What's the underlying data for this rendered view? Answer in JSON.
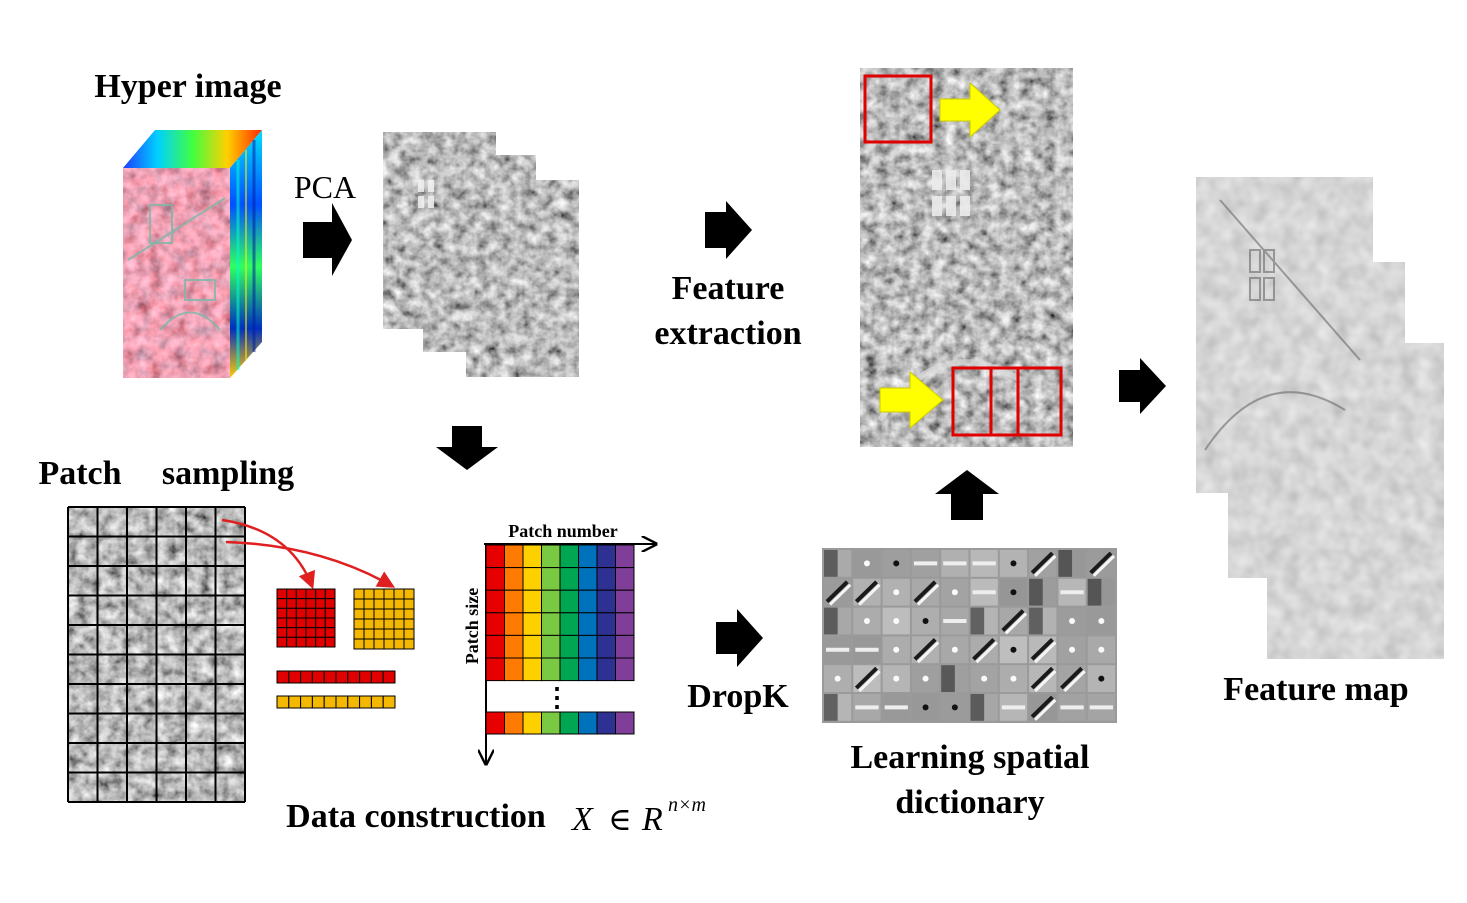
{
  "labels": {
    "hyper_image": "Hyper image",
    "pca": "PCA",
    "feature_extraction_line1": "Feature",
    "feature_extraction_line2": "extraction",
    "patch_sampling_word1": "Patch",
    "patch_sampling_word2": "sampling",
    "patch_number": "Patch number",
    "patch_size": "Patch size",
    "dropk": "DropK",
    "data_construction": "Data construction",
    "formula_x": "X",
    "formula_in": "∈",
    "formula_r": "R",
    "formula_exp": "n×m",
    "learning_line1": "Learning spatial",
    "learning_line2": "dictionary",
    "feature_map": "Feature map",
    "ellipsis": "⋮"
  },
  "colors": {
    "patch_red": "#e00000",
    "patch_yellow": "#f5b800",
    "arrow": "#000000",
    "highlight_arrow": "#ffff00",
    "highlight_box": "#e00000",
    "curve_arrow": "#e02020",
    "rainbow": [
      "#e60000",
      "#ff7a00",
      "#ffd000",
      "#7ac943",
      "#00a651",
      "#0072bc",
      "#2e3192",
      "#7f3f98"
    ]
  }
}
